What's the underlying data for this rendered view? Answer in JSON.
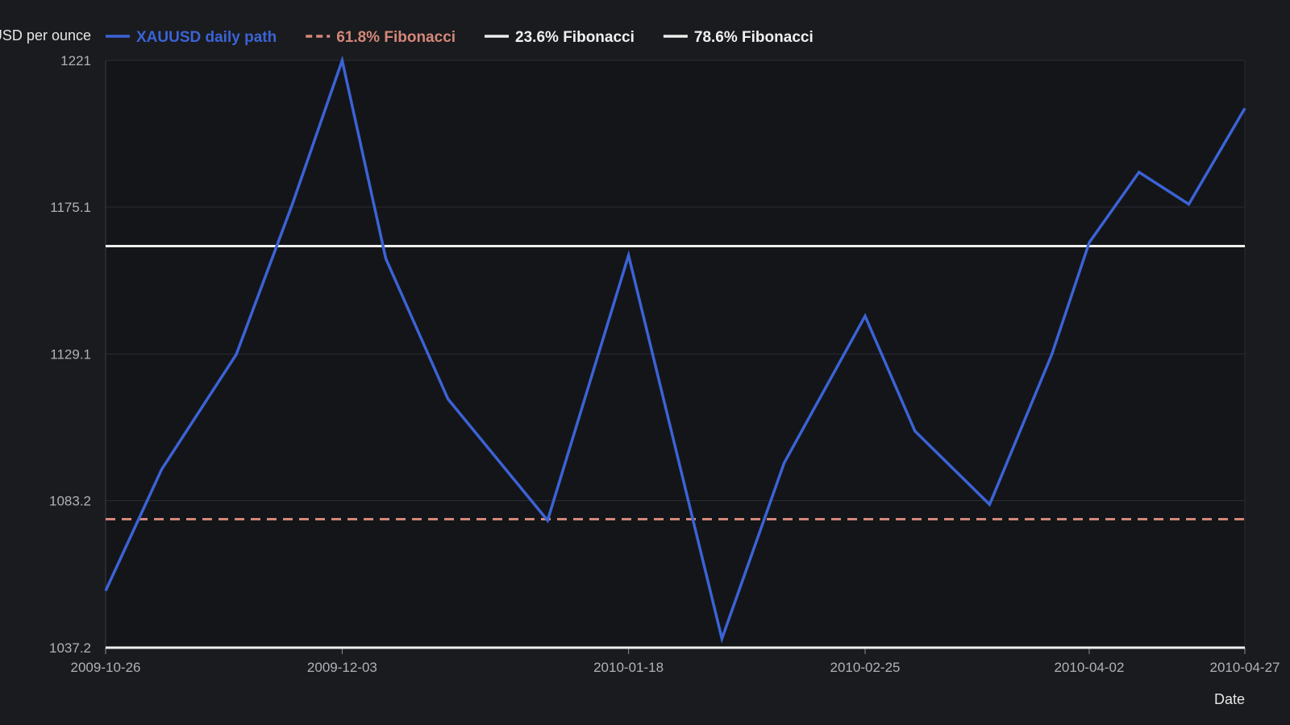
{
  "chart_data": {
    "type": "line",
    "title": "",
    "ylabel": "USD per ounce",
    "xlabel": "Date",
    "ylim": [
      1037.2,
      1221
    ],
    "xlim": [
      "2009-10-26",
      "2010-04-27"
    ],
    "y_ticks": [
      "1037.2",
      "1083.2",
      "1129.1",
      "1175.1",
      "1221"
    ],
    "x_ticks": [
      "2009-10-26",
      "2009-12-03",
      "2010-01-18",
      "2010-02-25",
      "2010-04-02",
      "2010-04-27"
    ],
    "grid": true,
    "legend_position": "top",
    "series": [
      {
        "name": "XAUUSD daily path",
        "color": "#3b63d6",
        "style": "solid",
        "x": [
          "2009-10-26",
          "2009-11-04",
          "2009-11-16",
          "2009-11-25",
          "2009-12-03",
          "2009-12-10",
          "2009-12-20",
          "2010-01-05",
          "2010-01-18",
          "2010-02-02",
          "2010-02-12",
          "2010-02-25",
          "2010-03-05",
          "2010-03-17",
          "2010-03-27",
          "2010-04-02",
          "2010-04-10",
          "2010-04-18",
          "2010-04-27"
        ],
        "y": [
          1055,
          1093,
          1129,
          1176,
          1221,
          1159,
          1115,
          1077,
          1160,
          1040,
          1095,
          1141,
          1105,
          1082,
          1129,
          1164,
          1186,
          1176,
          1206
        ]
      },
      {
        "name": "61.8% Fibonacci",
        "color": "#d4877a",
        "style": "dashed",
        "value": 1077.4
      },
      {
        "name": "23.6% Fibonacci",
        "color": "#eeeeee",
        "style": "solid",
        "value": 1162.9
      },
      {
        "name": "78.6% Fibonacci",
        "color": "#eeeeee",
        "style": "solid",
        "value": 1037.2
      }
    ]
  }
}
